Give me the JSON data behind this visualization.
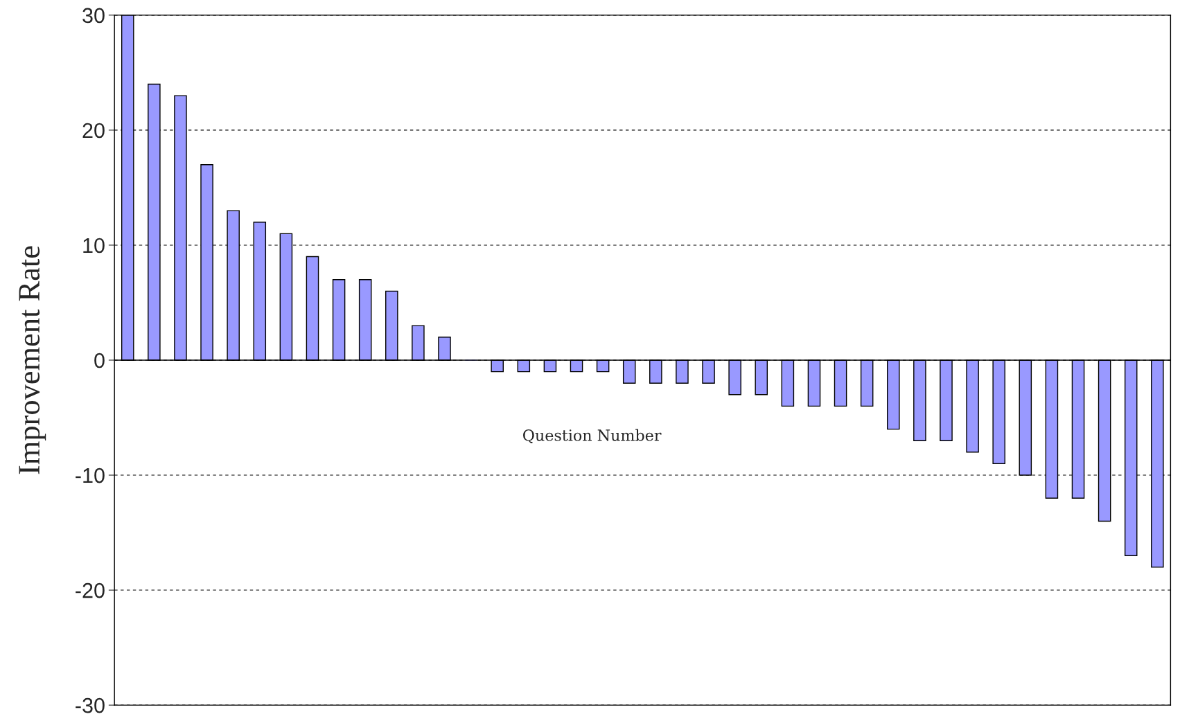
{
  "chart_data": {
    "type": "bar",
    "xlabel": "Question Number",
    "ylabel": "Improvement Rate",
    "categories": [
      null,
      null,
      null,
      null,
      null,
      null,
      null,
      null,
      null,
      null,
      null,
      null,
      null,
      null,
      null,
      null,
      null,
      null,
      null,
      null,
      null,
      null,
      null,
      null,
      null,
      null,
      null,
      null,
      null,
      null,
      null,
      null,
      null,
      null,
      null,
      null,
      null,
      null,
      null,
      null
    ],
    "values": [
      30,
      24,
      23,
      17,
      13,
      12,
      11,
      9,
      7,
      7,
      6,
      3,
      2,
      0,
      -1,
      -1,
      -1,
      -1,
      -1,
      -2,
      -2,
      -2,
      -2,
      -3,
      -3,
      -4,
      -4,
      -4,
      -4,
      -6,
      -7,
      -7,
      -8,
      -9,
      -10,
      -12,
      -12,
      -14,
      -17,
      -18
    ],
    "color": "#9999ff",
    "ylim": [
      -30,
      30
    ],
    "yticks": [
      -30,
      -20,
      -10,
      0,
      10,
      20,
      30
    ],
    "grid": "y"
  }
}
